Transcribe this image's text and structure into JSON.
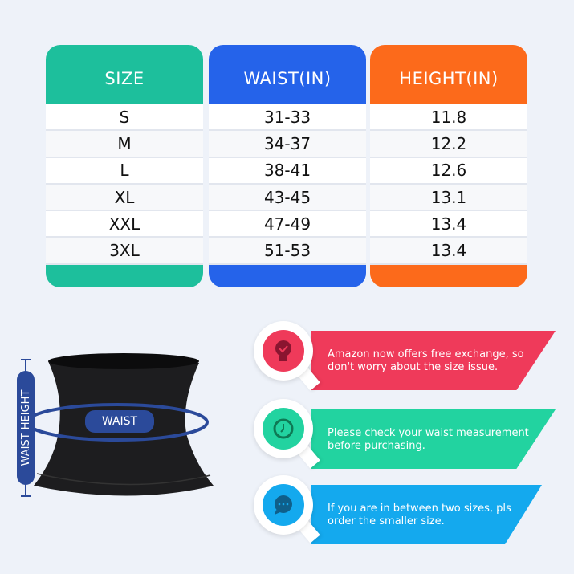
{
  "table": {
    "columns": [
      {
        "header": "SIZE",
        "color": "#1dbf9c",
        "values": [
          "S",
          "M",
          "L",
          "XL",
          "XXL",
          "3XL"
        ]
      },
      {
        "header": "WAIST(IN)",
        "color": "#2563ea",
        "values": [
          "31-33",
          "34-37",
          "38-41",
          "43-45",
          "47-49",
          "51-53"
        ]
      },
      {
        "header": "HEIGHT(IN)",
        "color": "#fc6a1b",
        "values": [
          "11.8",
          "12.2",
          "12.6",
          "13.1",
          "13.4",
          "13.4"
        ]
      }
    ]
  },
  "diagram": {
    "waist_label": "WAIST",
    "height_label": "WAIST HEIGHT",
    "accent": "#2b4a9a"
  },
  "tips": [
    {
      "text": "Amazon now offers free exchange, so don't worry about the size issue.",
      "icon": "lightbulb-check-icon",
      "color": "#ef3a5a"
    },
    {
      "text": "Please check your waist measurement before purchasing.",
      "icon": "clock-icon",
      "color": "#22d3a0"
    },
    {
      "text": "If you are in between two sizes, pls order the smaller size.",
      "icon": "chat-bubble-icon",
      "color": "#14a9ee"
    }
  ]
}
